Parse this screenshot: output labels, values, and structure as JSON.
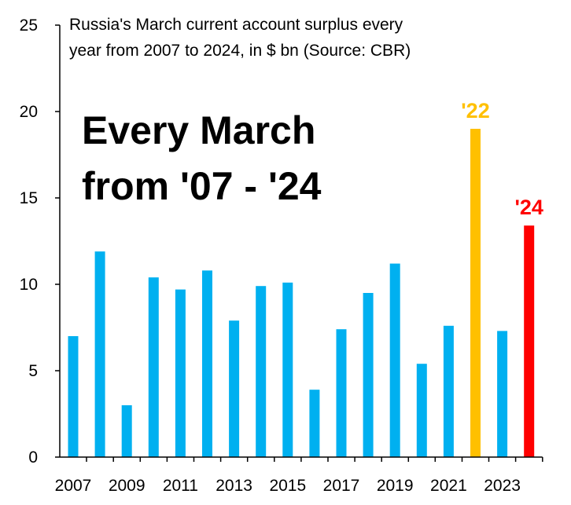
{
  "chart_data": {
    "type": "bar",
    "subtitle_lines": [
      "Russia's March current account surplus every",
      "year from 2007 to 2024, in $ bn (Source: CBR)"
    ],
    "headline_lines": [
      "Every March",
      "from '07 - '24"
    ],
    "categories": [
      "2007",
      "2008",
      "2009",
      "2010",
      "2011",
      "2012",
      "2013",
      "2014",
      "2015",
      "2016",
      "2017",
      "2018",
      "2019",
      "2020",
      "2021",
      "2022",
      "2023",
      "2024"
    ],
    "values": [
      7.0,
      11.9,
      3.0,
      10.4,
      9.7,
      10.8,
      7.9,
      9.9,
      10.1,
      3.9,
      7.4,
      9.5,
      11.2,
      5.4,
      7.6,
      19.0,
      7.3,
      13.4
    ],
    "x_tick_labels": [
      "2007",
      "2009",
      "2011",
      "2013",
      "2015",
      "2017",
      "2019",
      "2021",
      "2023"
    ],
    "y_ticks": [
      0,
      5,
      10,
      15,
      20,
      25
    ],
    "ylim": [
      0,
      25
    ],
    "grid": false,
    "colors": {
      "default": "#00B0F0",
      "2022": "#FFC000",
      "2024": "#FF0000"
    },
    "annotations": [
      {
        "category": "2022",
        "text": "'22",
        "color": "#FFC000"
      },
      {
        "category": "2024",
        "text": "'24",
        "color": "#FF0000"
      }
    ]
  }
}
